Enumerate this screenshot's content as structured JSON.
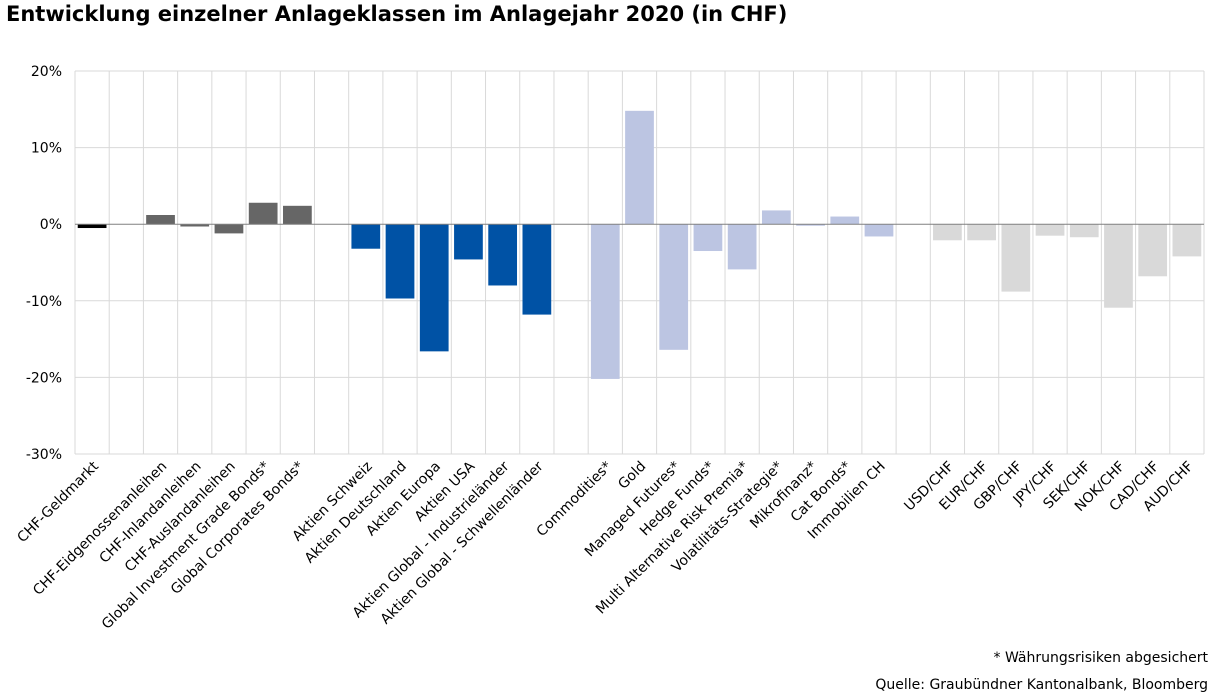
{
  "chart_data": {
    "type": "bar",
    "title": "Entwicklung einzelner Anlageklassen im Anlagejahr 2020 (in CHF)",
    "xlabel": "",
    "ylabel": "",
    "ylim": [
      -30,
      20
    ],
    "yticks": [
      20,
      10,
      0,
      -10,
      -20,
      -30
    ],
    "ytick_labels": [
      "20%",
      "10%",
      "0%",
      "-10%",
      "-20%",
      "-30%"
    ],
    "grid": true,
    "categories": [
      "CHF-Geldmarkt",
      "",
      "CHF-Eidgenossenanleihen",
      "CHF-Inlandanleihen",
      "CHF-Auslandanleihen",
      "Global  Investment Grade Bonds*",
      "Global Corporates Bonds*",
      "",
      "Aktien Schweiz",
      "Aktien Deutschland",
      "Aktien Europa",
      "Aktien USA",
      "Aktien Global - Industrieländer",
      "Aktien Global - Schwellenländer",
      "",
      "Commodities*",
      "Gold",
      "Managed Futures*",
      "Hedge Funds*",
      "Multi Alternative Risk Premia*",
      "Volatilitäts-Strategie*",
      "Mikrofinanz*",
      "Cat Bonds*",
      "Immobilien CH",
      "",
      "USD/CHF",
      "EUR/CHF",
      "GBP/CHF",
      "JPY/CHF",
      "SEK/CHF",
      "NOK/CHF",
      "CAD/CHF",
      "AUD/CHF"
    ],
    "values": [
      -0.5,
      null,
      1.2,
      -0.3,
      -1.2,
      2.8,
      2.4,
      null,
      -3.2,
      -9.7,
      -16.6,
      -4.6,
      -8.0,
      -11.8,
      null,
      -20.2,
      14.8,
      -16.4,
      -3.5,
      -5.9,
      1.8,
      -0.2,
      1.0,
      -1.6,
      null,
      -2.1,
      -2.1,
      -8.8,
      -1.5,
      -1.7,
      -10.9,
      -6.8,
      -4.2
    ],
    "colors": [
      "#000000",
      null,
      "#666666",
      "#666666",
      "#666666",
      "#666666",
      "#666666",
      null,
      "#0052a5",
      "#0052a5",
      "#0052a5",
      "#0052a5",
      "#0052a5",
      "#0052a5",
      null,
      "#bcc5e2",
      "#bcc5e2",
      "#bcc5e2",
      "#bcc5e2",
      "#bcc5e2",
      "#bcc5e2",
      "#bcc5e2",
      "#bcc5e2",
      "#bcc5e2",
      null,
      "#d9d9d9",
      "#d9d9d9",
      "#d9d9d9",
      "#d9d9d9",
      "#d9d9d9",
      "#d9d9d9",
      "#d9d9d9",
      "#d9d9d9"
    ]
  },
  "footnote": "* Währungsrisiken abgesichert",
  "source": "Quelle: Graubündner Kantonalbank, Bloomberg",
  "style": {
    "grid_color": "#d9d9d9",
    "zero_line_color": "#808080"
  }
}
